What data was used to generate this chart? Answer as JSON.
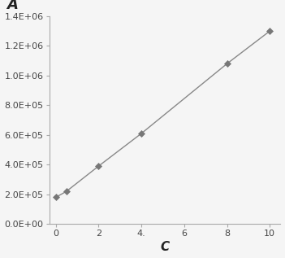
{
  "x": [
    0,
    0.5,
    2,
    4,
    8,
    10
  ],
  "y": [
    180000,
    220000,
    390000,
    610000,
    1080000,
    1300000
  ],
  "line_color": "#888888",
  "marker_color": "#777777",
  "marker_style": "D",
  "marker_size": 4.5,
  "marker_edge_width": 0.5,
  "line_width": 1.0,
  "xlabel": "C",
  "ylabel": "A",
  "xlim": [
    -0.3,
    10.5
  ],
  "ylim": [
    0,
    1400000.0
  ],
  "xticks": [
    0,
    2,
    4,
    6,
    8,
    10
  ],
  "xtick_labels": [
    "0",
    "2",
    "4.",
    "6",
    "8",
    "10"
  ],
  "yticks": [
    0,
    200000,
    400000,
    600000,
    800000,
    1000000,
    1200000,
    1400000
  ],
  "ytick_labels": [
    "0.0E+00",
    "2.0E+05",
    "4.0E+05",
    "6.0E+05",
    "8.0E+05",
    "1.0E+06",
    "1.2E+06",
    "1.4E+06"
  ],
  "background_color": "#f5f5f5",
  "tick_fontsize": 8,
  "xlabel_fontsize": 11,
  "ylabel_fontsize": 13,
  "spine_color": "#aaaaaa"
}
